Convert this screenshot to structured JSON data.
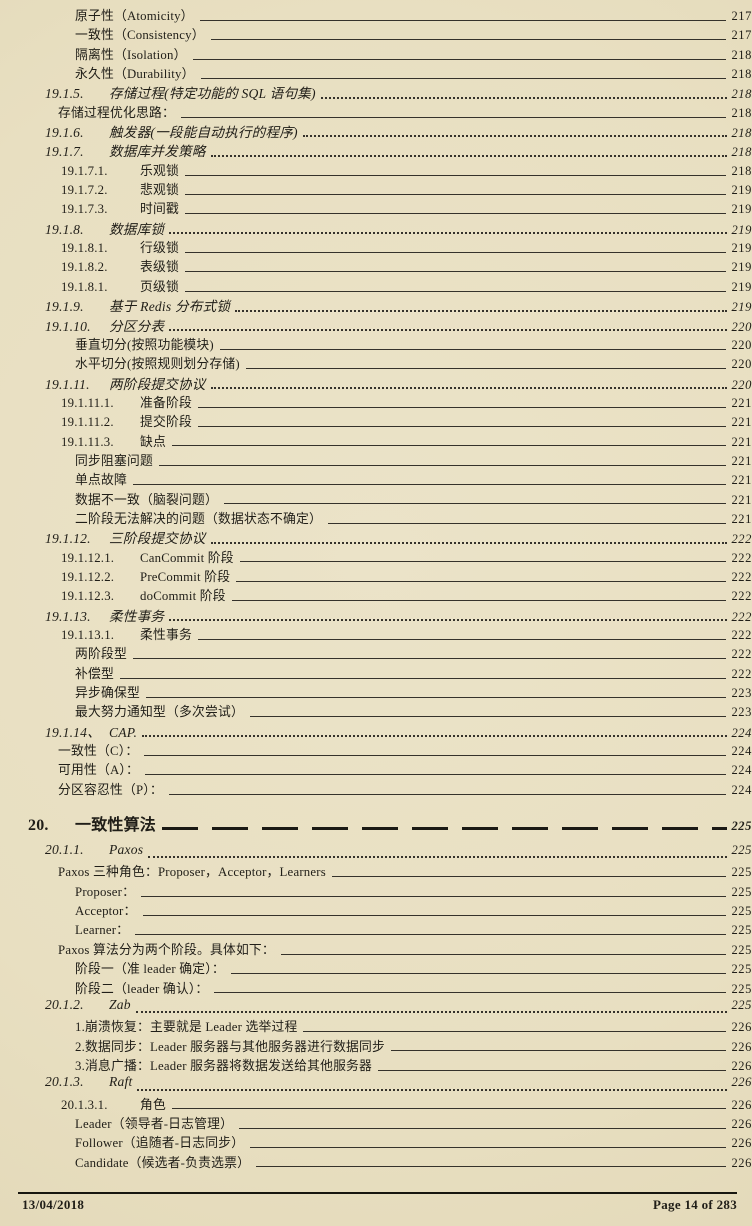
{
  "colors": {
    "page_bg": "#e9e0c3",
    "ink": "#201e18"
  },
  "footer": {
    "date": "13/04/2018",
    "page_label": "Page 14 of 283"
  },
  "toc": {
    "entries": [
      {
        "type": "plain",
        "num": "",
        "title": "原子性（Atomicity）",
        "page": "217"
      },
      {
        "type": "plain",
        "num": "",
        "title": "一致性（Consistency）",
        "page": "217"
      },
      {
        "type": "plain",
        "num": "",
        "title": "隔离性（Isolation）",
        "page": "218"
      },
      {
        "type": "plain",
        "num": "",
        "title": "永久性（Durability）",
        "page": "218"
      },
      {
        "type": "l2",
        "num": "19.1.5.",
        "title": "存储过程(特定功能的 SQL 语句集)",
        "page": "218"
      },
      {
        "type": "mid",
        "num": "",
        "title": "存储过程优化思路：",
        "page": "218"
      },
      {
        "type": "l2",
        "num": "19.1.6.",
        "title": "触发器(一段能自动执行的程序)",
        "page": "218"
      },
      {
        "type": "l2",
        "num": "19.1.7.",
        "title": "数据库并发策略",
        "page": "218"
      },
      {
        "type": "l3",
        "num": "19.1.7.1.",
        "title": "乐观锁",
        "page": "218"
      },
      {
        "type": "l3",
        "num": "19.1.7.2.",
        "title": "悲观锁",
        "page": "219"
      },
      {
        "type": "l3",
        "num": "19.1.7.3.",
        "title": "时间戳",
        "page": "219"
      },
      {
        "type": "l2",
        "num": "19.1.8.",
        "title": "数据库锁",
        "page": "219"
      },
      {
        "type": "l3",
        "num": "19.1.8.1.",
        "title": "行级锁",
        "page": "219"
      },
      {
        "type": "l3",
        "num": "19.1.8.2.",
        "title": "表级锁",
        "page": "219"
      },
      {
        "type": "l3",
        "num": "19.1.8.1.",
        "title": "页级锁",
        "page": "219"
      },
      {
        "type": "l2",
        "num": "19.1.9.",
        "title": "基于 Redis 分布式锁",
        "page": "219"
      },
      {
        "type": "l2",
        "num": "19.1.10.",
        "title": "分区分表",
        "page": "220"
      },
      {
        "type": "plain",
        "num": "",
        "title": "垂直切分(按照功能模块)",
        "page": "220"
      },
      {
        "type": "plain",
        "num": "",
        "title": "水平切分(按照规则划分存储)",
        "page": "220"
      },
      {
        "type": "l2",
        "num": "19.1.11.",
        "title": "两阶段提交协议",
        "page": "220"
      },
      {
        "type": "l3",
        "num": "19.1.11.1.",
        "title": "准备阶段",
        "page": "221"
      },
      {
        "type": "l3",
        "num": "19.1.11.2.",
        "title": "提交阶段",
        "page": "221"
      },
      {
        "type": "l3",
        "num": "19.1.11.3.",
        "title": "缺点",
        "page": "221"
      },
      {
        "type": "plain",
        "num": "",
        "title": "同步阻塞问题",
        "page": "221"
      },
      {
        "type": "plain",
        "num": "",
        "title": "单点故障",
        "page": "221"
      },
      {
        "type": "plain",
        "num": "",
        "title": "数据不一致（脑裂问题）",
        "page": "221"
      },
      {
        "type": "plain",
        "num": "",
        "title": "二阶段无法解决的问题（数据状态不确定）",
        "page": "221"
      },
      {
        "type": "l2",
        "num": "19.1.12.",
        "title": "三阶段提交协议",
        "page": "222"
      },
      {
        "type": "l3",
        "num": "19.1.12.1.",
        "title": "CanCommit 阶段",
        "page": "222"
      },
      {
        "type": "l3",
        "num": "19.1.12.2.",
        "title": "PreCommit 阶段",
        "page": "222"
      },
      {
        "type": "l3",
        "num": "19.1.12.3.",
        "title": "doCommit 阶段",
        "page": "222"
      },
      {
        "type": "l2",
        "num": "19.1.13.",
        "title": "柔性事务",
        "page": "222"
      },
      {
        "type": "l3",
        "num": "19.1.13.1.",
        "title": "柔性事务",
        "page": "222"
      },
      {
        "type": "plain",
        "num": "",
        "title": "两阶段型",
        "page": "222"
      },
      {
        "type": "plain",
        "num": "",
        "title": "补偿型",
        "page": "222"
      },
      {
        "type": "plain",
        "num": "",
        "title": "异步确保型",
        "page": "223"
      },
      {
        "type": "plain",
        "num": "",
        "title": "最大努力通知型（多次尝试）",
        "page": "223"
      },
      {
        "type": "l2",
        "num": "19.1.14、",
        "title": "CAP.",
        "page": "224"
      },
      {
        "type": "mid",
        "num": "",
        "title": "一致性（C）：",
        "page": "224"
      },
      {
        "type": "mid",
        "num": "",
        "title": "可用性（A）：",
        "page": "224"
      },
      {
        "type": "mid",
        "num": "",
        "title": "分区容忍性（P）：",
        "page": "224"
      },
      {
        "type": "chapter",
        "num": "20.",
        "title": "一致性算法",
        "page": "225"
      },
      {
        "type": "l2",
        "num": "20.1.1.",
        "title": "Paxos",
        "page": "225"
      },
      {
        "type": "mid",
        "num": "",
        "title": "Paxos 三种角色：Proposer，Acceptor，Learners",
        "page": "225"
      },
      {
        "type": "plain",
        "num": "",
        "title": "Proposer：",
        "page": "225"
      },
      {
        "type": "plain",
        "num": "",
        "title": "Acceptor：",
        "page": "225"
      },
      {
        "type": "plain",
        "num": "",
        "title": "Learner：",
        "page": "225"
      },
      {
        "type": "mid",
        "num": "",
        "title": "Paxos 算法分为两个阶段。具体如下：",
        "page": "225"
      },
      {
        "type": "plain",
        "num": "",
        "title": "阶段一（准 leader 确定）：",
        "page": "225"
      },
      {
        "type": "plain",
        "num": "",
        "title": "阶段二（leader 确认）：",
        "page": "225"
      },
      {
        "type": "l2",
        "num": "20.1.2.",
        "title": "Zab",
        "page": "225"
      },
      {
        "type": "plain",
        "num": "",
        "title": "1.崩溃恢复：主要就是 Leader 选举过程",
        "page": "226"
      },
      {
        "type": "plain",
        "num": "",
        "title": "2.数据同步：Leader 服务器与其他服务器进行数据同步",
        "page": "226"
      },
      {
        "type": "plain",
        "num": "",
        "title": "3.消息广播：Leader 服务器将数据发送给其他服务器",
        "page": "226"
      },
      {
        "type": "l2",
        "num": "20.1.3.",
        "title": "Raft",
        "page": "226"
      },
      {
        "type": "l3",
        "num": "20.1.3.1.",
        "title": "角色",
        "page": "226"
      },
      {
        "type": "plain",
        "num": "",
        "title": "Leader（领导者-日志管理）",
        "page": "226"
      },
      {
        "type": "plain",
        "num": "",
        "title": "Follower（追随者-日志同步）",
        "page": "226"
      },
      {
        "type": "plain",
        "num": "",
        "title": "Candidate（候选者-负责选票）",
        "page": "226"
      }
    ]
  }
}
